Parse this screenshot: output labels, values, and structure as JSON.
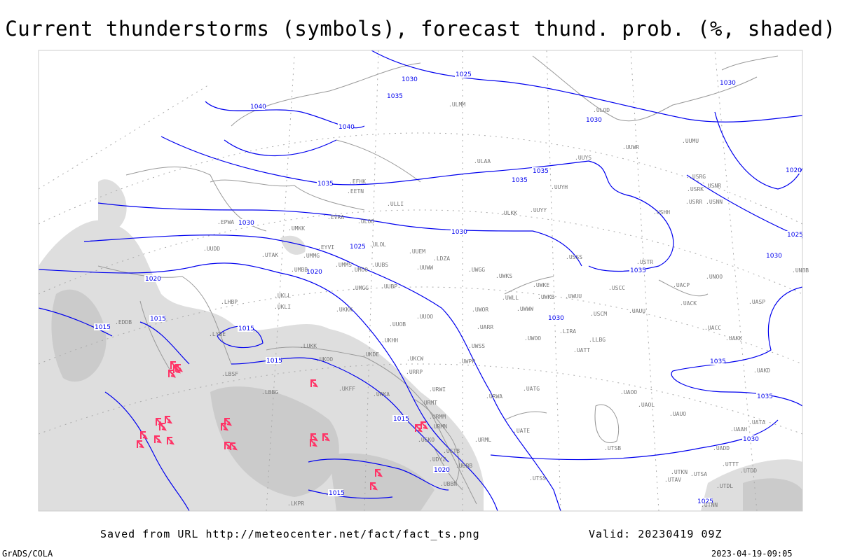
{
  "title": "Current thunderstorms (symbols), forecast thund. prob. (%, shaded)",
  "footer": {
    "saved_from": "Saved from URL http://meteocenter.net/fact/fact_ts.png",
    "valid": "Valid: 20230419 09Z",
    "software": "GrADS/COLA",
    "generated": "2023-04-19-09:05"
  },
  "colors": {
    "isobars": "#0000ee",
    "coast": "#999999",
    "shading": "#d8d8d8",
    "thunderstorm_symbol": "#ff3366"
  },
  "icons": {
    "thunderstorm": "thunderstorm-symbol-icon"
  },
  "isobar_labels": [
    "1040",
    "1040",
    "1035",
    "1030",
    "1025",
    "1030",
    "1030",
    "1035",
    "1035",
    "1035",
    "1030",
    "1030",
    "1025",
    "1020",
    "1020",
    "1015",
    "1015",
    "1015",
    "1015",
    "1015",
    "1015",
    "1020",
    "1025",
    "1030",
    "1035",
    "1030",
    "1035",
    "1035",
    "1030",
    "1025",
    "1020"
  ],
  "stations": [
    "ULMM",
    "ULAA",
    "EFHK",
    "EETN",
    "ULLI",
    "EVRA",
    "ULOO",
    "UMKK",
    "ULOL",
    "EYVI",
    "UMMG",
    "UMBB",
    "UMMS",
    "UMOO",
    "UUBS",
    "UUEM",
    "UUWW",
    "UWGG",
    "UWKS",
    "ULKK",
    "UUYY",
    "UUYH",
    "UUYS",
    "ULOD",
    "USHH",
    "USRR",
    "USRK",
    "USRG",
    "USNR",
    "USNN",
    "UUMU",
    "UUWR",
    "UWKE",
    "UWKB",
    "UWLL",
    "UWWW",
    "UWUU",
    "USCC",
    "USCM",
    "UAUU",
    "UACC",
    "UAKK",
    "UACK",
    "UASP",
    "UACP",
    "UNOO",
    "UNBB",
    "USTR",
    "USSS",
    "UMGG",
    "UUBP",
    "UUOO",
    "UUOB",
    "UKKK",
    "UKLL",
    "UKLI",
    "LHBP",
    "LYBE",
    "LBSF",
    "LBBG",
    "LUKK",
    "UKOO",
    "UKFF",
    "UKHH",
    "UKDE",
    "UKCW",
    "URRP",
    "URKA",
    "URWI",
    "URWA",
    "URMT",
    "URMM",
    "URMN",
    "UGKO",
    "UGTB",
    "UBBB",
    "UDYZ",
    "UBBN",
    "URML",
    "UATE",
    "UATG",
    "UATT",
    "UAOO",
    "UAOL",
    "UAUO",
    "UATA",
    "UAKD",
    "UAAH",
    "UADD",
    "UTTT",
    "UTDL",
    "UTDD",
    "UTKN",
    "UTAV",
    "UTSA",
    "UTSB",
    "UTSS",
    "UTNN",
    "UTAK",
    "UUDD",
    "EPWA",
    "LKPR",
    "EDDB",
    "LDZA",
    "LIRA",
    "LLBG",
    "UWOO",
    "UWOR",
    "UARR",
    "UWPP",
    "UWSS",
    "URWW",
    "UBWK"
  ],
  "thunderstorm_count": 23
}
